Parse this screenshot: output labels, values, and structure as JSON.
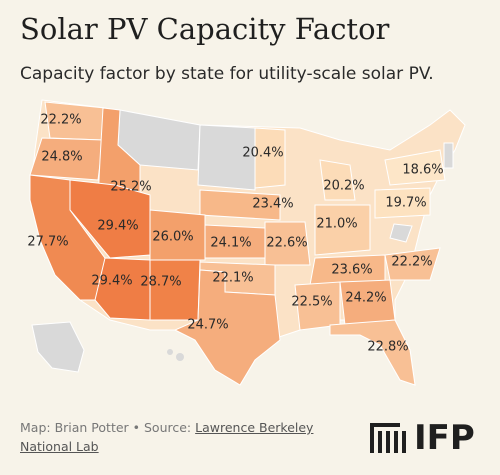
{
  "chart_data": {
    "type": "choropleth",
    "title": "Solar PV Capacity Factor",
    "subtitle": "Capacity factor by state for utility-scale solar PV.",
    "values": [
      22.2,
      24.8,
      25.2,
      20.4,
      18.6,
      20.2,
      19.7,
      23.4,
      21.0,
      27.7,
      29.4,
      26.0,
      24.1,
      22.6,
      23.6,
      22.2,
      29.4,
      28.7,
      22.1,
      22.5,
      24.2,
      24.7,
      22.8
    ],
    "value_labels": [
      "22.2%",
      "24.8%",
      "25.2%",
      "20.4%",
      "18.6%",
      "20.2%",
      "19.7%",
      "23.4%",
      "21.0%",
      "27.7%",
      "29.4%",
      "26.0%",
      "24.1%",
      "22.6%",
      "23.6%",
      "22.2%",
      "29.4%",
      "28.7%",
      "22.1%",
      "22.5%",
      "24.2%",
      "24.7%",
      "22.8%"
    ],
    "colors": [
      "#f8c095",
      "#f5ad7d",
      "#f3a06b",
      "#fcdcb8",
      "#fde6c8",
      "#fcdcb8",
      "#fde2c0",
      "#f7b889",
      "#fad0a8",
      "#f08a52",
      "#ef7d45",
      "#f3a06b",
      "#f5ad7d",
      "#f8c095",
      "#f7b889",
      "#f8c095",
      "#ef7d45",
      "#f08248",
      "#f8c095",
      "#f8c095",
      "#f5ad7d",
      "#f5ad7d",
      "#f8c095"
    ]
  },
  "footer": {
    "credit": "Map: Brian Potter • Source:",
    "source_link": "Lawrence Berkeley National Lab",
    "logo": "IFP"
  }
}
